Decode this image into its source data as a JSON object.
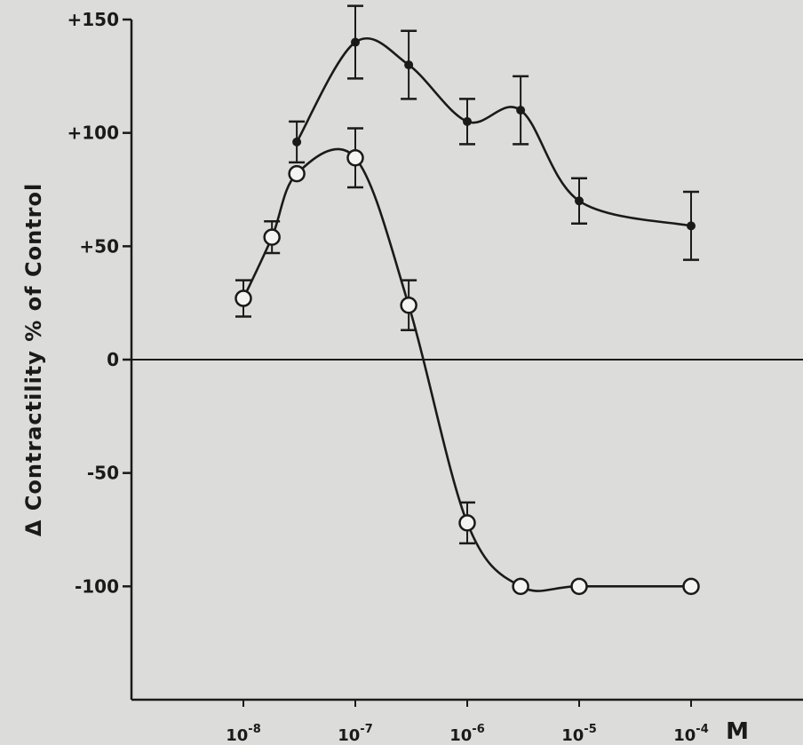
{
  "chart_data": {
    "type": "line",
    "ylabel": "Δ Contractility % of Control",
    "x_unit": "M",
    "x_scale": "log",
    "xlim": [
      1e-09,
      0.001
    ],
    "ylim": [
      -150,
      150
    ],
    "y_ticks": [
      {
        "value": 150,
        "label": "+150"
      },
      {
        "value": 100,
        "label": "+100"
      },
      {
        "value": 50,
        "label": "+50"
      },
      {
        "value": 0,
        "label": "0"
      },
      {
        "value": -50,
        "label": "-50"
      },
      {
        "value": -100,
        "label": "-100"
      }
    ],
    "x_ticks": [
      {
        "value": 1e-08,
        "base": "10",
        "exp": "-8"
      },
      {
        "value": 1e-07,
        "base": "10",
        "exp": "-7"
      },
      {
        "value": 1e-06,
        "base": "10",
        "exp": "-6"
      },
      {
        "value": 1e-05,
        "base": "10",
        "exp": "-5"
      },
      {
        "value": 0.0001,
        "base": "10",
        "exp": "-4"
      }
    ],
    "zero_line": true,
    "series": [
      {
        "marker": "filled",
        "x": [
          3e-08,
          1e-07,
          3e-07,
          1e-06,
          3e-06,
          1e-05,
          0.0001
        ],
        "y": [
          96,
          140,
          130,
          105,
          110,
          70,
          59
        ],
        "error": [
          9,
          16,
          15,
          10,
          15,
          10,
          15
        ]
      },
      {
        "marker": "open",
        "x": [
          1e-08,
          1.8e-08,
          3e-08,
          1e-07,
          3e-07,
          1e-06,
          3e-06,
          1e-05,
          0.0001
        ],
        "y": [
          27,
          54,
          82,
          89,
          24,
          -72,
          -100,
          -100,
          -100
        ],
        "error": [
          8,
          7,
          0,
          13,
          11,
          9,
          0,
          0,
          0
        ]
      }
    ]
  }
}
